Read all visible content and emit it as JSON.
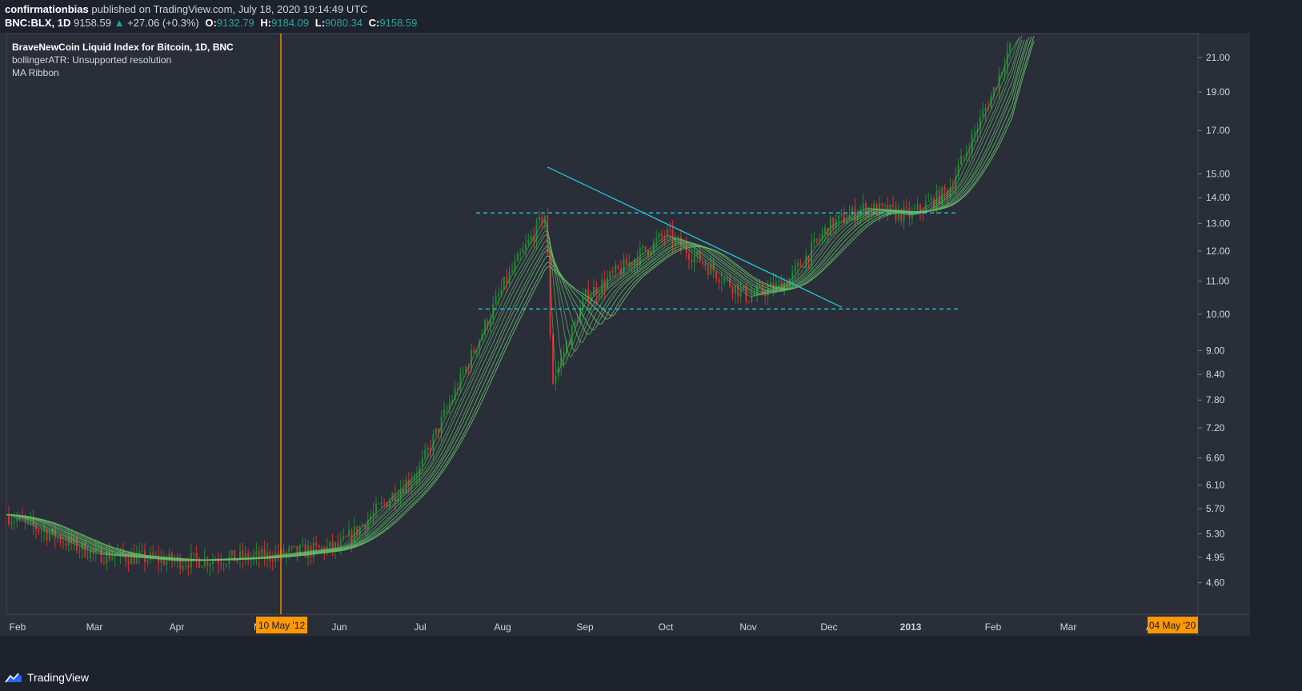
{
  "header": {
    "author": "confirmationbias",
    "published": "published on TradingView.com, July 18, 2020 19:14:49 UTC",
    "symbol": "BNC:BLX, 1D",
    "last": "9158.59",
    "change": "+27.06 (+0.3%)",
    "o_label": "O:",
    "o_value": "9132.79",
    "h_label": "H:",
    "h_value": "9184.09",
    "l_label": "L:",
    "l_value": "9080.34",
    "c_label": "C:",
    "c_value": "9158.59"
  },
  "legend": {
    "title": "BraveNewCoin Liquid Index for Bitcoin, 1D, BNC",
    "line2": "bollingerATR: Unsupported resolution",
    "line3": "MA Ribbon"
  },
  "footer": {
    "brand": "TradingView"
  },
  "colors": {
    "background": "#2a2e39",
    "outer": "#1e222d",
    "up": "#26a69a",
    "candle_up": "#1e8a2e",
    "candle_down": "#d32f2f",
    "ribbon": "#66bb6a",
    "ribbon_red": "#ef5350",
    "trendline": "#26c6da",
    "marker": "#ff9800"
  },
  "chart_data": {
    "type": "candlestick",
    "title": "BraveNewCoin Liquid Index for Bitcoin, 1D, BNC",
    "yscale": "log",
    "ylim": [
      4.2,
      22.5
    ],
    "y_ticks": [
      "21.00",
      "19.00",
      "17.00",
      "15.00",
      "14.00",
      "13.00",
      "12.00",
      "11.00",
      "10.00",
      "9.00",
      "8.40",
      "7.80",
      "7.20",
      "6.60",
      "6.10",
      "5.70",
      "5.30",
      "4.95",
      "4.60"
    ],
    "x_ticks": [
      "Feb",
      "Mar",
      "Apr",
      "M",
      "Jun",
      "Jul",
      "Aug",
      "Sep",
      "Oct",
      "Nov",
      "Dec",
      "2013",
      "Feb",
      "Mar",
      "A"
    ],
    "x_ticks_bold": [
      "2013"
    ],
    "price_path": [
      [
        "Feb",
        5.6
      ],
      [
        "Mar",
        5.0
      ],
      [
        "Apr",
        4.9
      ],
      [
        "M",
        4.95
      ],
      [
        "Jun",
        5.1
      ],
      [
        "Jul",
        6.4
      ],
      [
        "Aug",
        10.8
      ],
      [
        "Aug 16",
        13.4
      ],
      [
        "Aug 19",
        8.2
      ],
      [
        "Sep",
        10.5
      ],
      [
        "Oct",
        12.6
      ],
      [
        "Nov",
        10.5
      ],
      [
        "Nov 15",
        11.0
      ],
      [
        "Dec",
        12.9
      ],
      [
        "Dec 10",
        13.6
      ],
      [
        "2013",
        13.3
      ],
      [
        "Jan 20",
        14.3
      ],
      [
        "Feb",
        19.0
      ],
      [
        "Feb 8",
        21.5
      ]
    ],
    "annotations": {
      "vertical_marker_label": "10 May '12",
      "right_time_label": "04 May '20",
      "resistance_level": 13.4,
      "support_level": 10.15,
      "trendline_start": 15.3,
      "trendline_end": 10.2
    }
  }
}
